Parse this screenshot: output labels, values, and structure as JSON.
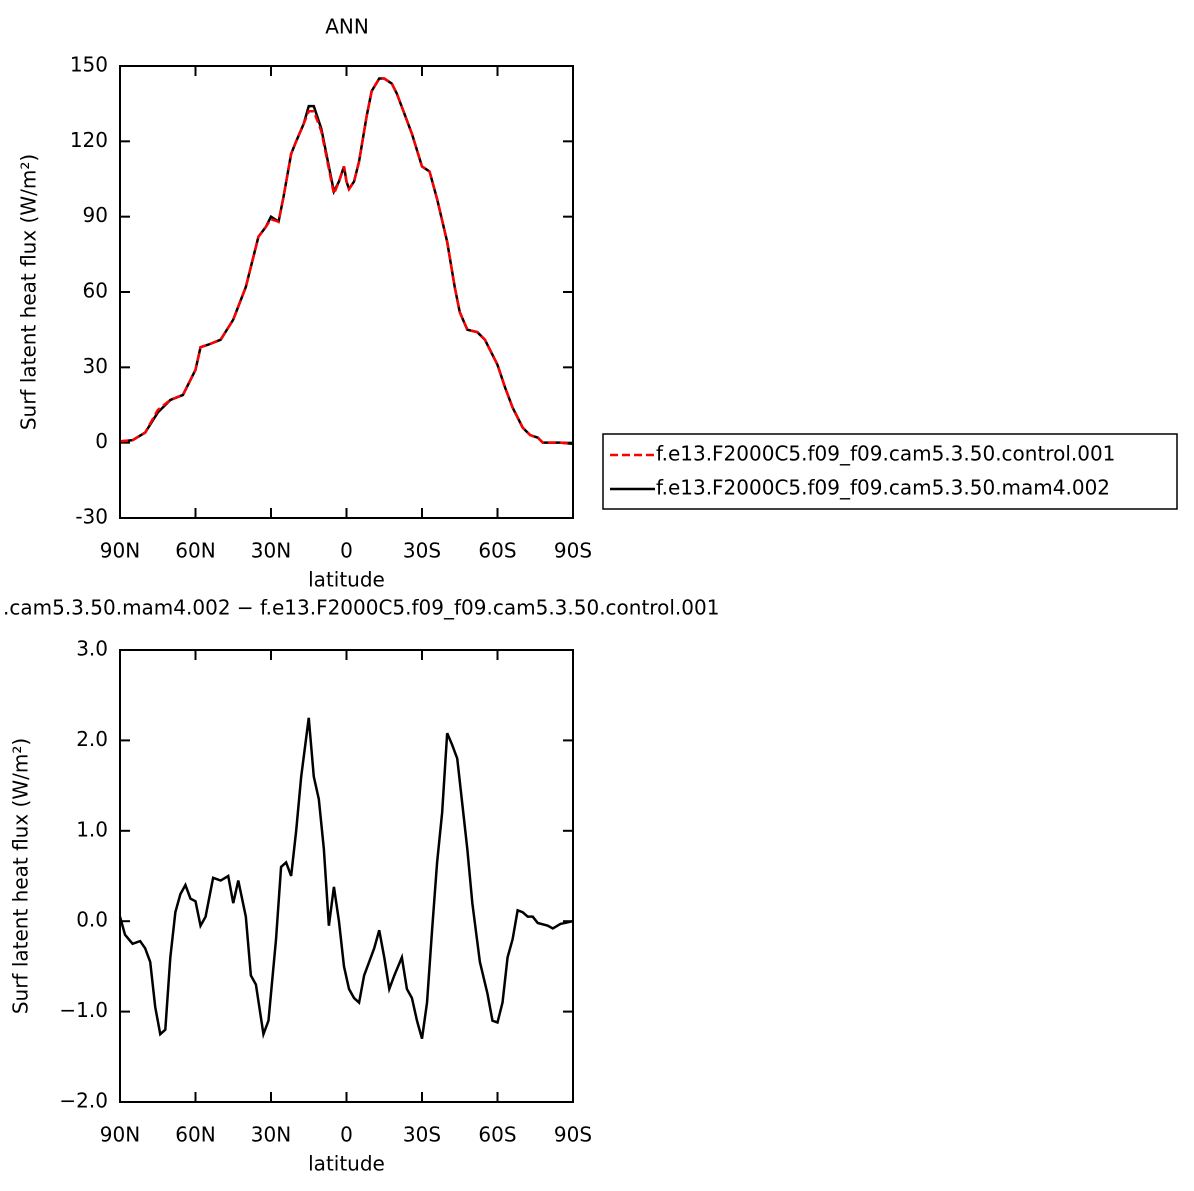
{
  "chart_data": [
    {
      "type": "line",
      "title": "ANN",
      "x_label": "latitude",
      "y_label": "Surf latent heat flux (W/m²)",
      "xlim": [
        90,
        -90
      ],
      "xticks": [
        {
          "value": 90,
          "label": "90N"
        },
        {
          "value": 60,
          "label": "60N"
        },
        {
          "value": 30,
          "label": "30N"
        },
        0,
        {
          "value": -30,
          "label": "30S"
        },
        {
          "value": -60,
          "label": "60S"
        },
        {
          "value": -90,
          "label": "90S"
        }
      ],
      "ylim": [
        -30,
        150
      ],
      "yticks": [
        -30,
        0,
        30,
        60,
        90,
        120,
        150
      ],
      "x": [
        90,
        85,
        80,
        75,
        70,
        65,
        60,
        58,
        55,
        50,
        45,
        40,
        35,
        32,
        30,
        27,
        25,
        22,
        20,
        17,
        15,
        13,
        10,
        7,
        5,
        3,
        1,
        0,
        -1,
        -3,
        -5,
        -8,
        -10,
        -13,
        -15,
        -18,
        -20,
        -23,
        -26,
        -30,
        -33,
        -36,
        -40,
        -43,
        -45,
        -48,
        -52,
        -55,
        -60,
        -63,
        -66,
        -70,
        -73,
        -76,
        -78,
        -80,
        -85,
        -90
      ],
      "series": [
        {
          "name": "f.e13.F2000C5.f09_f09.cam5.3.50.control.001",
          "color": "#ff0000",
          "dashed": true,
          "values": [
            0.5,
            1,
            4,
            13,
            17,
            19,
            29,
            38,
            39,
            41,
            49,
            62,
            82,
            86,
            89,
            88,
            98,
            115,
            120,
            127,
            132,
            132,
            124,
            109,
            99,
            104,
            110,
            104,
            101,
            104,
            112,
            130,
            140,
            145,
            145,
            143,
            139,
            131,
            123,
            110,
            108,
            97,
            80,
            62,
            52,
            45,
            44,
            41,
            31,
            22,
            14,
            6,
            3,
            2,
            0,
            0,
            0,
            -0.5
          ]
        },
        {
          "name": "f.e13.F2000C5.f09_f09.cam5.3.50.mam4.002",
          "color": "#000000",
          "dashed": false,
          "values": [
            0.5,
            1,
            4,
            12,
            17,
            19,
            29,
            38,
            39,
            41,
            49,
            62,
            82,
            86,
            90,
            88,
            98,
            115,
            120,
            127,
            134,
            134,
            125,
            110,
            100,
            104,
            110,
            104,
            101,
            104,
            112,
            130,
            140,
            145,
            145,
            143,
            139,
            131,
            123,
            110,
            108,
            97,
            80,
            62,
            52,
            45,
            44,
            41,
            31,
            22,
            14,
            6,
            3,
            2,
            0,
            0,
            0,
            -0.5
          ]
        }
      ]
    },
    {
      "type": "line",
      "title": ".cam5.3.50.mam4.002 − f.e13.F2000C5.f09_f09.cam5.3.50.control.001",
      "x_label": "latitude",
      "y_label": "Surf latent heat flux (W/m²)",
      "xlim": [
        90,
        -90
      ],
      "xticks": [
        {
          "value": 90,
          "label": "90N"
        },
        {
          "value": 60,
          "label": "60N"
        },
        {
          "value": 30,
          "label": "30N"
        },
        0,
        {
          "value": -30,
          "label": "30S"
        },
        {
          "value": -60,
          "label": "60S"
        },
        {
          "value": -90,
          "label": "90S"
        }
      ],
      "ylim": [
        -2,
        3
      ],
      "yticks": [
        {
          "value": -2,
          "label": "−2.0"
        },
        {
          "value": -1,
          "label": "−1.0"
        },
        {
          "value": 0,
          "label": "0.0"
        },
        {
          "value": 1,
          "label": "1.0"
        },
        {
          "value": 2,
          "label": "2.0"
        },
        {
          "value": 3,
          "label": "3.0"
        }
      ],
      "color": "#000000",
      "x": [
        90,
        88,
        85,
        82,
        80,
        78,
        76,
        74,
        72,
        70,
        68,
        66,
        64,
        62,
        60,
        58,
        56,
        53,
        50,
        47,
        45,
        43,
        40,
        38,
        36,
        33,
        31,
        28,
        26,
        24,
        22,
        20,
        18,
        15,
        13,
        11,
        9,
        7,
        5,
        3,
        1,
        -1,
        -3,
        -5,
        -7,
        -9,
        -11,
        -13,
        -15,
        -17,
        -19,
        -22,
        -24,
        -26,
        -28,
        -30,
        -32,
        -34,
        -36,
        -38,
        -40,
        -42,
        -44,
        -46,
        -48,
        -50,
        -53,
        -56,
        -58,
        -60,
        -62,
        -64,
        -66,
        -68,
        -70,
        -72,
        -74,
        -76,
        -80,
        -82,
        -85,
        -90
      ],
      "values": [
        0.05,
        -0.15,
        -0.25,
        -0.22,
        -0.3,
        -0.45,
        -0.95,
        -1.25,
        -1.2,
        -0.4,
        0.1,
        0.3,
        0.4,
        0.25,
        0.22,
        -0.05,
        0.05,
        0.48,
        0.45,
        0.5,
        0.2,
        0.45,
        0.05,
        -0.6,
        -0.7,
        -1.25,
        -1.1,
        -0.2,
        0.6,
        0.65,
        0.5,
        1.0,
        1.6,
        2.25,
        1.6,
        1.35,
        0.8,
        -0.05,
        0.38,
        0.0,
        -0.5,
        -0.75,
        -0.85,
        -0.9,
        -0.6,
        -0.45,
        -0.3,
        -0.1,
        -0.4,
        -0.75,
        -0.6,
        -0.4,
        -0.75,
        -0.85,
        -1.1,
        -1.3,
        -0.9,
        -0.1,
        0.65,
        1.2,
        2.08,
        1.95,
        1.8,
        1.3,
        0.8,
        0.2,
        -0.45,
        -0.8,
        -1.1,
        -1.12,
        -0.9,
        -0.4,
        -0.2,
        0.12,
        0.1,
        0.05,
        0.05,
        -0.02,
        -0.05,
        -0.08,
        -0.03,
        0.0
      ]
    }
  ]
}
